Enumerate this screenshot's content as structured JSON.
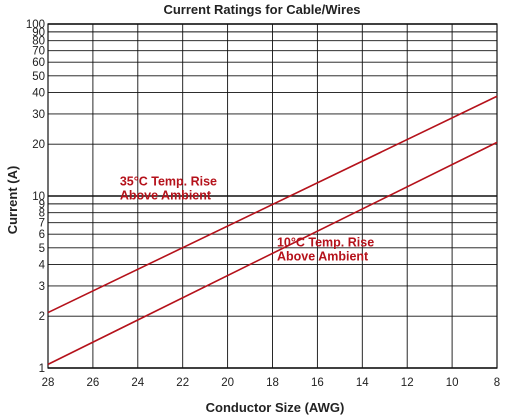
{
  "chart_data": {
    "type": "line",
    "title": "Current Ratings for Cable/Wires",
    "xlabel": "Conductor Size (AWG)",
    "ylabel": "Current (A)",
    "x_ticks": [
      28,
      26,
      24,
      22,
      20,
      18,
      16,
      14,
      12,
      10,
      8
    ],
    "xlim": [
      28,
      8
    ],
    "ylim": [
      1,
      100
    ],
    "yscale": "log",
    "y_ticks": [
      1,
      2,
      3,
      4,
      5,
      6,
      7,
      8,
      9,
      10,
      20,
      30,
      40,
      50,
      60,
      70,
      80,
      90,
      100
    ],
    "grid": true,
    "line_color": "#b5121b",
    "series": [
      {
        "x": [
          28,
          8
        ],
        "y": [
          2.1,
          38
        ]
      },
      {
        "x": [
          28,
          8
        ],
        "y": [
          1.05,
          20.5
        ]
      }
    ],
    "annotations": [
      {
        "lines": [
          "35°C Temp. Rise",
          "Above Ambient"
        ],
        "x": 24.8,
        "y": 11.5
      },
      {
        "lines": [
          "10°C Temp. Rise",
          "Above Ambient"
        ],
        "x": 17.8,
        "y": 5.1
      }
    ]
  }
}
